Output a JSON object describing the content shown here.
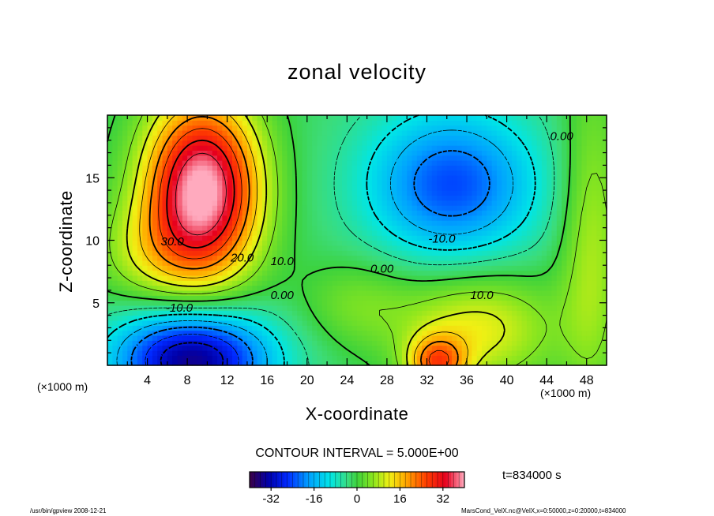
{
  "chart_data": {
    "type": "heatmap",
    "title": "zonal velocity",
    "xlabel": "X-coordinate",
    "ylabel": "Z-coordinate",
    "x_unit": "(×1000 m)",
    "y_unit": "(×1000 m)",
    "xlim": [
      0,
      50
    ],
    "ylim": [
      0,
      20
    ],
    "x_ticks": [
      4,
      8,
      12,
      16,
      20,
      24,
      28,
      32,
      36,
      40,
      44,
      48
    ],
    "y_ticks": [
      5,
      10,
      15
    ],
    "contour_interval": "CONTOUR INTERVAL = 5.000E+00",
    "contour_labels": [
      {
        "text": "30.0",
        "x": 6.5,
        "y": 9.6
      },
      {
        "text": "20.0",
        "x": 13.5,
        "y": 8.3
      },
      {
        "text": "10.0",
        "x": 17.5,
        "y": 8.0
      },
      {
        "text": "0.00",
        "x": 17.5,
        "y": 5.3
      },
      {
        "text": "-10.0",
        "x": 7.2,
        "y": 4.3
      },
      {
        "text": "-10.0",
        "x": 33.5,
        "y": 9.8
      },
      {
        "text": "0.00",
        "x": 27.5,
        "y": 7.4
      },
      {
        "text": "10.0",
        "x": 37.5,
        "y": 5.3
      },
      {
        "text": "0.00",
        "x": 45.5,
        "y": 18.0
      }
    ],
    "colorbar": {
      "min": -40,
      "max": 40,
      "ticks": [
        -32,
        -16,
        0,
        16,
        32
      ]
    },
    "field_features": [
      {
        "kind": "max",
        "x": 9.5,
        "y": 12.5,
        "value": 38
      },
      {
        "kind": "min",
        "x": 8.5,
        "y": 1.0,
        "value": -28
      },
      {
        "kind": "min",
        "x": 34.5,
        "y": 14.5,
        "value": -20
      },
      {
        "kind": "max",
        "x": 33.0,
        "y": 0.5,
        "value": 22
      },
      {
        "kind": "max",
        "x": 36.0,
        "y": 2.5,
        "value": 14
      }
    ],
    "time": "t=834000 s"
  },
  "footer": {
    "left": "/usr/bin/gpview   2008-12-21",
    "right": "MarsCond_VelX.nc@VelX,x=0:50000,z=0:20000,t=834000"
  },
  "colors": {
    "axis": "#000000",
    "background": "#ffffff"
  }
}
